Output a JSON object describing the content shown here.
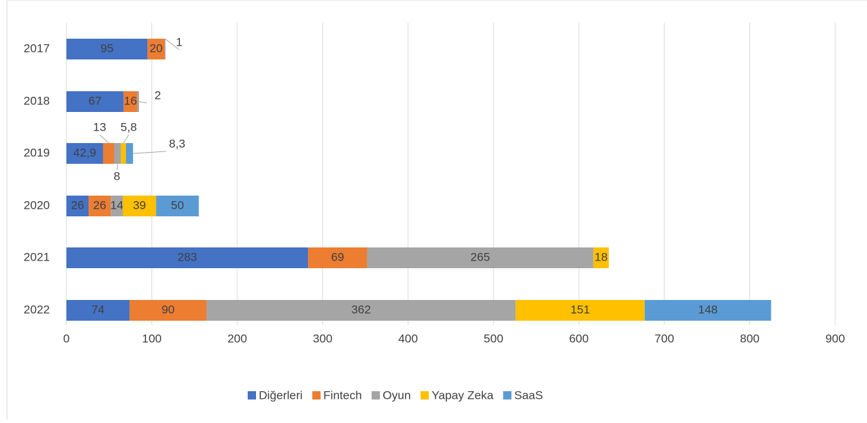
{
  "chart_data": {
    "type": "stacked-bar-horizontal",
    "categories": [
      "2017",
      "2018",
      "2019",
      "2020",
      "2021",
      "2022"
    ],
    "series": [
      {
        "name": "Diğerleri",
        "color": "#4472c4",
        "values": [
          95,
          67,
          42.9,
          26,
          283,
          74
        ],
        "value_labels": [
          "95",
          "67",
          "42,9",
          "26",
          "283",
          "74"
        ]
      },
      {
        "name": "Fintech",
        "color": "#ed7d31",
        "values": [
          20,
          16,
          13,
          26,
          69,
          90
        ],
        "value_labels": [
          "20",
          "16",
          "13",
          "26",
          "69",
          "90"
        ]
      },
      {
        "name": "Oyun",
        "color": "#a5a5a5",
        "values": [
          1,
          2,
          8,
          14,
          265,
          362
        ],
        "value_labels": [
          "1",
          "2",
          "8",
          "14",
          "265",
          "362"
        ]
      },
      {
        "name": "Yapay Zeka",
        "color": "#ffc000",
        "values": [
          null,
          null,
          5.8,
          39,
          18,
          151
        ],
        "value_labels": [
          null,
          null,
          "5,8",
          "39",
          "18",
          "151"
        ]
      },
      {
        "name": "SaaS",
        "color": "#5b9bd5",
        "values": [
          null,
          null,
          8.3,
          50,
          null,
          148
        ],
        "value_labels": [
          null,
          null,
          "8,3",
          "50",
          null,
          "148"
        ]
      }
    ],
    "xlim": [
      0,
      900
    ],
    "xticks": [
      0,
      100,
      200,
      300,
      400,
      500,
      600,
      700,
      800,
      900
    ],
    "grid": true,
    "legend": "bottom"
  }
}
